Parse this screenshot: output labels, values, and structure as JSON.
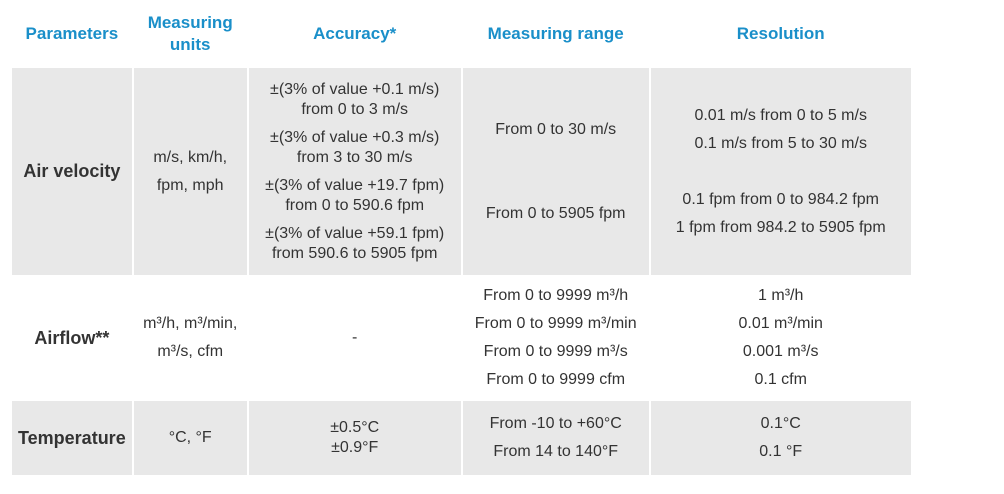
{
  "table": {
    "header": [
      "Parameters",
      "Measuring units",
      "Accuracy*",
      "Measuring range",
      "Resolution"
    ],
    "rows": [
      {
        "parameter": "Air velocity",
        "units": [
          "m/s, km/h,",
          "fpm, mph"
        ],
        "accuracy": [
          [
            "±(3% of value +0.1 m/s)",
            "from 0 to 3 m/s"
          ],
          [
            "±(3% of value +0.3 m/s)",
            "from 3 to 30 m/s"
          ],
          [
            "±(3% of value +19.7 fpm)",
            "from 0 to 590.6 fpm"
          ],
          [
            "±(3% of value +59.1 fpm)",
            "from 590.6 to 5905 fpm"
          ]
        ],
        "range": [
          [
            "From 0 to 30 m/s"
          ],
          [
            "From 0 to 5905 fpm"
          ]
        ],
        "resolution": [
          [
            "0.01 m/s from 0 to 5 m/s",
            "0.1 m/s from 5 to 30 m/s"
          ],
          [
            "0.1 fpm from 0 to 984.2 fpm",
            "1 fpm from 984.2 to 5905 fpm"
          ]
        ]
      },
      {
        "parameter": "Airflow**",
        "units": [
          "m³/h, m³/min,",
          "m³/s, cfm"
        ],
        "accuracy": [
          [
            "-"
          ]
        ],
        "range": [
          [
            "From 0 to 9999 m³/h",
            "From 0 to 9999 m³/min",
            "From 0 to 9999 m³/s",
            "From 0 to 9999 cfm"
          ]
        ],
        "resolution": [
          [
            "1 m³/h",
            "0.01 m³/min",
            "0.001 m³/s",
            "0.1 cfm"
          ]
        ]
      },
      {
        "parameter": "Temperature",
        "units": [
          "°C, °F"
        ],
        "accuracy": [
          [
            "±0.5°C",
            "±0.9°F"
          ]
        ],
        "range": [
          [
            "From -10 to +60°C",
            "From 14 to 140°F"
          ]
        ],
        "resolution": [
          [
            "0.1°C",
            "0.1 °F"
          ]
        ]
      }
    ]
  }
}
